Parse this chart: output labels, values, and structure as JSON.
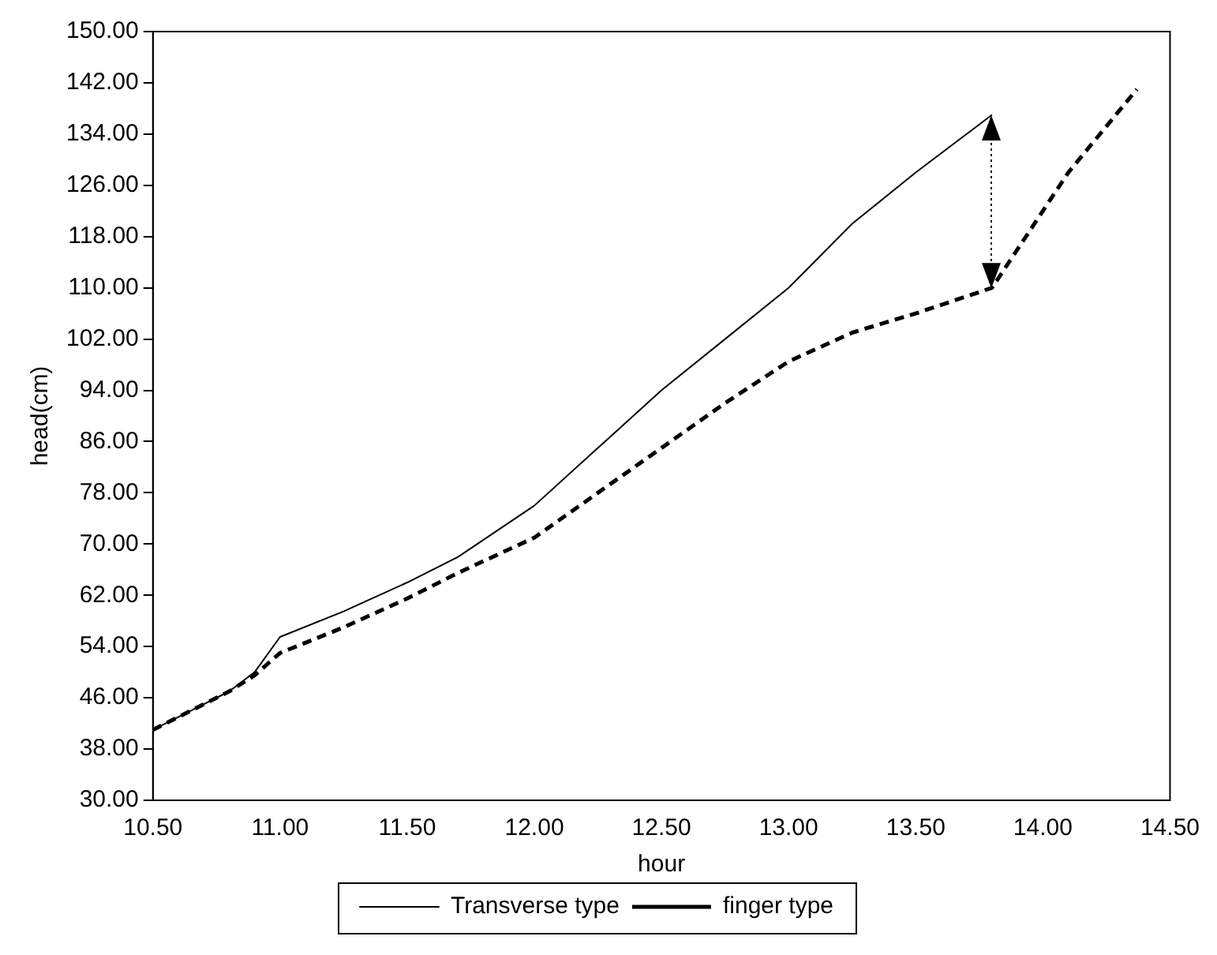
{
  "chart_data": {
    "type": "line",
    "xlabel": "hour",
    "ylabel": "head(cm)",
    "xlim": [
      10.5,
      14.5
    ],
    "xticks": [
      {
        "value": 10.5,
        "label": "10.50"
      },
      {
        "value": 11,
        "label": "11.00"
      },
      {
        "value": 11.5,
        "label": "11.50"
      },
      {
        "value": 12,
        "label": "12.00"
      },
      {
        "value": 12.5,
        "label": "12.50"
      },
      {
        "value": 13,
        "label": "13.00"
      },
      {
        "value": 13.5,
        "label": "13.50"
      },
      {
        "value": 14,
        "label": "14.00"
      },
      {
        "value": 14.5,
        "label": "14.50"
      }
    ],
    "ylim": [
      30,
      150
    ],
    "yticks": [
      {
        "value": 30,
        "label": "30.00"
      },
      {
        "value": 38,
        "label": "38.00"
      },
      {
        "value": 46,
        "label": "46.00"
      },
      {
        "value": 54,
        "label": "54.00"
      },
      {
        "value": 62,
        "label": "62.00"
      },
      {
        "value": 70,
        "label": "70.00"
      },
      {
        "value": 78,
        "label": "78.00"
      },
      {
        "value": 86,
        "label": "86.00"
      },
      {
        "value": 94,
        "label": "94.00"
      },
      {
        "value": 102,
        "label": "102.00"
      },
      {
        "value": 110,
        "label": "110.00"
      },
      {
        "value": 118,
        "label": "118.00"
      },
      {
        "value": 126,
        "label": "126.00"
      },
      {
        "value": 134,
        "label": "134.00"
      },
      {
        "value": 142,
        "label": "142.00"
      },
      {
        "value": 150,
        "label": "150.00"
      }
    ],
    "grid": false,
    "legend": "bottom",
    "marker": "none",
    "series": [
      {
        "name": "Transverse type",
        "color": "#000000",
        "line_style": "solid",
        "x": [
          10.5,
          10.8,
          10.9,
          11.0,
          11.25,
          11.5,
          11.7,
          12.0,
          12.25,
          12.5,
          12.75,
          13.0,
          13.25,
          13.5,
          13.8
        ],
        "values": [
          41,
          47,
          50,
          55.5,
          59.5,
          64,
          68,
          76,
          85,
          94,
          102,
          110,
          120,
          128,
          137
        ]
      },
      {
        "name": "finger type",
        "color": "#000000",
        "line_style": "dashed",
        "x": [
          10.5,
          10.8,
          10.9,
          11.0,
          11.25,
          11.5,
          11.7,
          12.0,
          12.25,
          12.5,
          12.75,
          13.0,
          13.25,
          13.5,
          13.8,
          14.1,
          14.37
        ],
        "values": [
          41,
          47,
          49.5,
          53,
          57,
          61.5,
          65.5,
          71,
          78,
          85,
          92,
          98.5,
          103,
          106,
          110,
          128,
          141
        ]
      }
    ]
  }
}
